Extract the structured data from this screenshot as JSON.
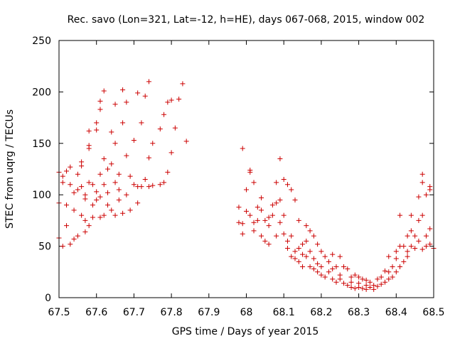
{
  "chart_data": {
    "type": "scatter",
    "title": "Rec. savo (Lon=321, Lat=-12, h=HE), days 067-068, 2015, window 002",
    "xlabel": "GPS time / Days of year 2015",
    "ylabel": "STEC from uqrg / TECUs",
    "xlim": [
      67.5,
      68.5
    ],
    "ylim": [
      0,
      250
    ],
    "xticks": [
      67.5,
      67.6,
      67.7,
      67.8,
      67.9,
      68.0,
      68.1,
      68.2,
      68.3,
      68.4,
      68.5
    ],
    "xtick_labels": [
      "67.5",
      "67.6",
      "67.7",
      "67.8",
      "67.9",
      "68",
      "68.1",
      "68.2",
      "68.3",
      "68.4",
      "68.5"
    ],
    "yticks": [
      0,
      50,
      100,
      150,
      200,
      250
    ],
    "ytick_labels": [
      "0",
      "50",
      "100",
      "150",
      "200",
      "250"
    ],
    "marker": "+",
    "color": "#cc0000",
    "series": [
      {
        "name": "STEC",
        "points": [
          [
            67.5,
            122
          ],
          [
            67.5,
            92
          ],
          [
            67.5,
            58
          ],
          [
            67.51,
            50
          ],
          [
            67.51,
            112
          ],
          [
            67.51,
            118
          ],
          [
            67.52,
            70
          ],
          [
            67.52,
            90
          ],
          [
            67.52,
            123
          ],
          [
            67.53,
            52
          ],
          [
            67.53,
            127
          ],
          [
            67.53,
            110
          ],
          [
            67.54,
            85
          ],
          [
            67.54,
            102
          ],
          [
            67.54,
            57
          ],
          [
            67.55,
            120
          ],
          [
            67.55,
            105
          ],
          [
            67.55,
            60
          ],
          [
            67.56,
            128
          ],
          [
            67.56,
            132
          ],
          [
            67.56,
            80
          ],
          [
            67.56,
            108
          ],
          [
            67.57,
            64
          ],
          [
            67.57,
            96
          ],
          [
            67.57,
            100
          ],
          [
            67.57,
            75
          ],
          [
            67.58,
            145
          ],
          [
            67.58,
            148
          ],
          [
            67.58,
            162
          ],
          [
            67.58,
            70
          ],
          [
            67.58,
            112
          ],
          [
            67.59,
            78
          ],
          [
            67.59,
            90
          ],
          [
            67.59,
            110
          ],
          [
            67.6,
            170
          ],
          [
            67.6,
            163
          ],
          [
            67.6,
            103
          ],
          [
            67.6,
            95
          ],
          [
            67.61,
            183
          ],
          [
            67.61,
            191
          ],
          [
            67.61,
            120
          ],
          [
            67.61,
            78
          ],
          [
            67.61,
            98
          ],
          [
            67.62,
            201
          ],
          [
            67.62,
            135
          ],
          [
            67.62,
            110
          ],
          [
            67.62,
            80
          ],
          [
            67.63,
            125
          ],
          [
            67.63,
            102
          ],
          [
            67.63,
            90
          ],
          [
            67.64,
            130
          ],
          [
            67.64,
            161
          ],
          [
            67.64,
            85
          ],
          [
            67.65,
            112
          ],
          [
            67.65,
            188
          ],
          [
            67.65,
            150
          ],
          [
            67.65,
            80
          ],
          [
            67.66,
            95
          ],
          [
            67.66,
            105
          ],
          [
            67.66,
            120
          ],
          [
            67.67,
            202
          ],
          [
            67.67,
            170
          ],
          [
            67.67,
            82
          ],
          [
            67.68,
            190
          ],
          [
            67.68,
            138
          ],
          [
            67.68,
            100
          ],
          [
            67.69,
            118
          ],
          [
            67.69,
            85
          ],
          [
            67.7,
            153
          ],
          [
            67.7,
            110
          ],
          [
            67.71,
            199
          ],
          [
            67.71,
            108
          ],
          [
            67.71,
            92
          ],
          [
            67.72,
            170
          ],
          [
            67.72,
            108
          ],
          [
            67.73,
            196
          ],
          [
            67.73,
            115
          ],
          [
            67.74,
            210
          ],
          [
            67.74,
            136
          ],
          [
            67.74,
            108
          ],
          [
            67.75,
            150
          ],
          [
            67.75,
            109
          ],
          [
            67.77,
            164
          ],
          [
            67.77,
            110
          ],
          [
            67.78,
            178
          ],
          [
            67.78,
            112
          ],
          [
            67.79,
            190
          ],
          [
            67.79,
            122
          ],
          [
            67.8,
            192
          ],
          [
            67.8,
            141
          ],
          [
            67.81,
            165
          ],
          [
            67.82,
            193
          ],
          [
            67.83,
            208
          ],
          [
            67.84,
            152
          ],
          [
            67.98,
            88
          ],
          [
            67.98,
            73
          ],
          [
            67.99,
            145
          ],
          [
            67.99,
            72
          ],
          [
            67.99,
            62
          ],
          [
            68.0,
            84
          ],
          [
            68.0,
            105
          ],
          [
            68.01,
            124
          ],
          [
            68.01,
            122
          ],
          [
            68.01,
            80
          ],
          [
            68.02,
            112
          ],
          [
            68.02,
            65
          ],
          [
            68.02,
            73
          ],
          [
            68.03,
            75
          ],
          [
            68.03,
            88
          ],
          [
            68.04,
            97
          ],
          [
            68.04,
            85
          ],
          [
            68.04,
            60
          ],
          [
            68.05,
            55
          ],
          [
            68.05,
            75
          ],
          [
            68.06,
            70
          ],
          [
            68.06,
            78
          ],
          [
            68.06,
            52
          ],
          [
            68.07,
            90
          ],
          [
            68.07,
            80
          ],
          [
            68.08,
            112
          ],
          [
            68.08,
            92
          ],
          [
            68.08,
            60
          ],
          [
            68.09,
            135
          ],
          [
            68.09,
            95
          ],
          [
            68.09,
            73
          ],
          [
            68.1,
            115
          ],
          [
            68.1,
            80
          ],
          [
            68.1,
            62
          ],
          [
            68.11,
            110
          ],
          [
            68.11,
            48
          ],
          [
            68.11,
            55
          ],
          [
            68.12,
            105
          ],
          [
            68.12,
            40
          ],
          [
            68.12,
            60
          ],
          [
            68.13,
            95
          ],
          [
            68.13,
            45
          ],
          [
            68.13,
            38
          ],
          [
            68.14,
            75
          ],
          [
            68.14,
            48
          ],
          [
            68.14,
            35
          ],
          [
            68.15,
            52
          ],
          [
            68.15,
            42
          ],
          [
            68.15,
            30
          ],
          [
            68.16,
            70
          ],
          [
            68.16,
            55
          ],
          [
            68.16,
            40
          ],
          [
            68.17,
            65
          ],
          [
            68.17,
            30
          ],
          [
            68.17,
            45
          ],
          [
            68.18,
            60
          ],
          [
            68.18,
            28
          ],
          [
            68.18,
            38
          ],
          [
            68.19,
            52
          ],
          [
            68.19,
            25
          ],
          [
            68.19,
            33
          ],
          [
            68.2,
            45
          ],
          [
            68.2,
            22
          ],
          [
            68.2,
            30
          ],
          [
            68.21,
            40
          ],
          [
            68.21,
            20
          ],
          [
            68.22,
            35
          ],
          [
            68.22,
            25
          ],
          [
            68.23,
            42
          ],
          [
            68.23,
            18
          ],
          [
            68.23,
            28
          ],
          [
            68.24,
            30
          ],
          [
            68.24,
            15
          ],
          [
            68.25,
            40
          ],
          [
            68.25,
            22
          ],
          [
            68.25,
            18
          ],
          [
            68.26,
            30
          ],
          [
            68.26,
            14
          ],
          [
            68.27,
            28
          ],
          [
            68.27,
            12
          ],
          [
            68.28,
            20
          ],
          [
            68.28,
            10
          ],
          [
            68.28,
            15
          ],
          [
            68.29,
            22
          ],
          [
            68.29,
            9
          ],
          [
            68.3,
            20
          ],
          [
            68.3,
            10
          ],
          [
            68.3,
            14
          ],
          [
            68.31,
            18
          ],
          [
            68.31,
            9
          ],
          [
            68.32,
            17
          ],
          [
            68.32,
            8
          ],
          [
            68.32,
            12
          ],
          [
            68.33,
            15
          ],
          [
            68.33,
            10
          ],
          [
            68.34,
            12
          ],
          [
            68.34,
            8
          ],
          [
            68.35,
            18
          ],
          [
            68.35,
            11
          ],
          [
            68.36,
            20
          ],
          [
            68.36,
            13
          ],
          [
            68.37,
            26
          ],
          [
            68.37,
            15
          ],
          [
            68.38,
            40
          ],
          [
            68.38,
            25
          ],
          [
            68.38,
            18
          ],
          [
            68.39,
            30
          ],
          [
            68.39,
            20
          ],
          [
            68.4,
            38
          ],
          [
            68.4,
            25
          ],
          [
            68.4,
            45
          ],
          [
            68.41,
            50
          ],
          [
            68.41,
            30
          ],
          [
            68.41,
            80
          ],
          [
            68.42,
            50
          ],
          [
            68.42,
            35
          ],
          [
            68.43,
            60
          ],
          [
            68.43,
            45
          ],
          [
            68.43,
            40
          ],
          [
            68.44,
            65
          ],
          [
            68.44,
            80
          ],
          [
            68.44,
            50
          ],
          [
            68.45,
            60
          ],
          [
            68.45,
            48
          ],
          [
            68.46,
            98
          ],
          [
            68.46,
            55
          ],
          [
            68.46,
            75
          ],
          [
            68.47,
            120
          ],
          [
            68.47,
            112
          ],
          [
            68.47,
            80
          ],
          [
            68.47,
            47
          ],
          [
            68.48,
            100
          ],
          [
            68.48,
            60
          ],
          [
            68.48,
            50
          ],
          [
            68.49,
            108
          ],
          [
            68.49,
            105
          ],
          [
            68.49,
            67
          ],
          [
            68.49,
            52
          ],
          [
            68.5,
            48
          ]
        ]
      }
    ]
  }
}
